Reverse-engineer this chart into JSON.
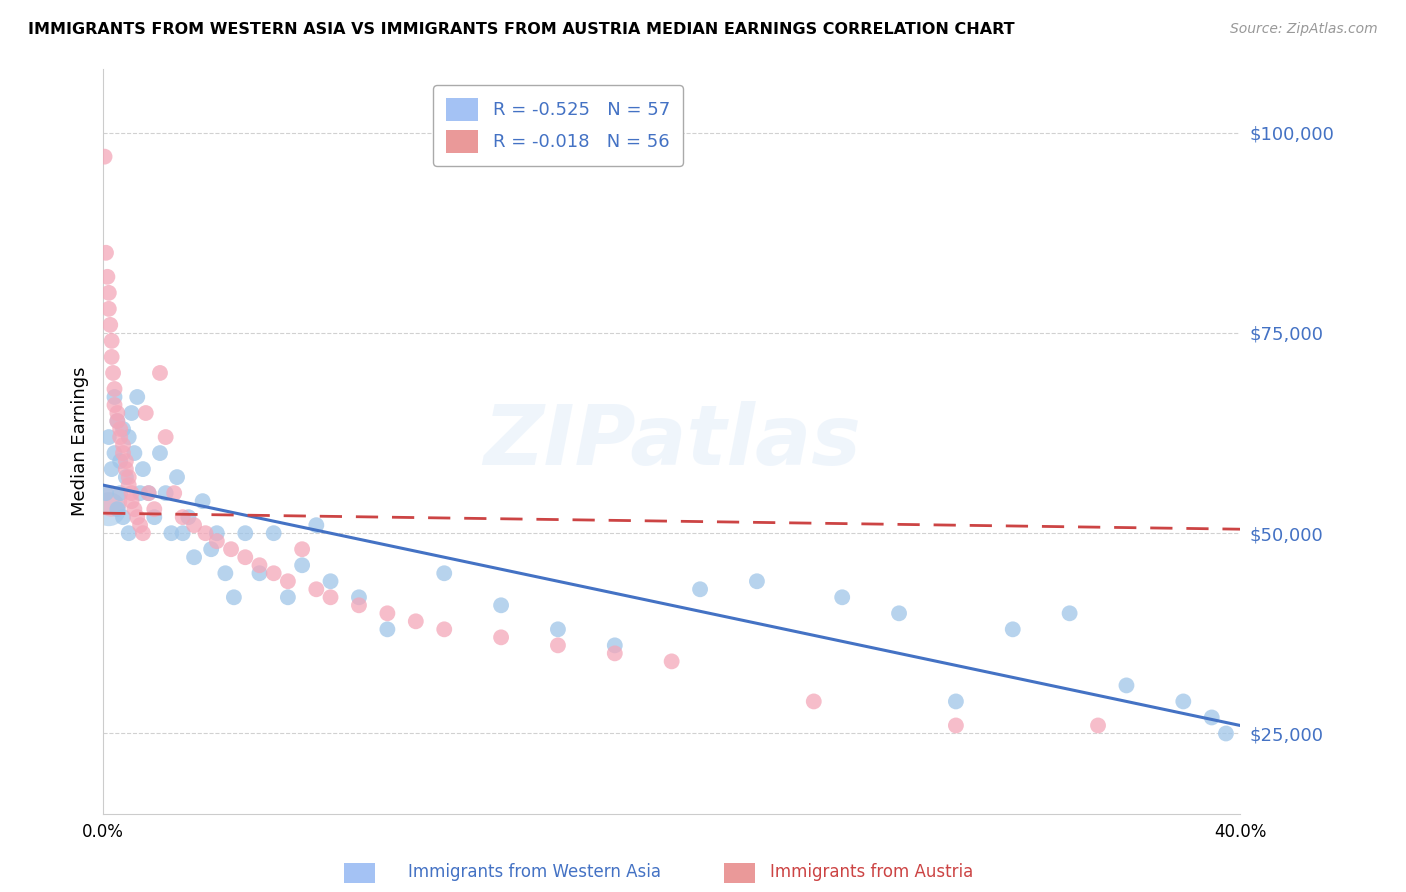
{
  "title": "IMMIGRANTS FROM WESTERN ASIA VS IMMIGRANTS FROM AUSTRIA MEDIAN EARNINGS CORRELATION CHART",
  "source": "Source: ZipAtlas.com",
  "ylabel": "Median Earnings",
  "y_ticks": [
    25000,
    50000,
    75000,
    100000
  ],
  "y_tick_labels": [
    "$25,000",
    "$50,000",
    "$75,000",
    "$100,000"
  ],
  "x_min": 0.0,
  "x_max": 0.4,
  "y_min": 15000,
  "y_max": 108000,
  "legend1_label": "R = -0.525   N = 57",
  "legend2_label": "R = -0.018   N = 56",
  "legend1_color": "#a4c2f4",
  "legend2_color": "#ea9999",
  "watermark": "ZIPatlas",
  "series1_color": "#9fc5e8",
  "series2_color": "#f4a7b9",
  "line1_color": "#4472c4",
  "line2_color": "#cc4444",
  "line1_x0": 0.0,
  "line1_y0": 56000,
  "line1_x1": 0.4,
  "line1_y1": 26000,
  "line2_x0": 0.0,
  "line2_y0": 52500,
  "line2_x1": 0.4,
  "line2_y1": 50500,
  "series1_x": [
    0.001,
    0.002,
    0.003,
    0.004,
    0.004,
    0.005,
    0.005,
    0.006,
    0.006,
    0.007,
    0.007,
    0.008,
    0.009,
    0.009,
    0.01,
    0.011,
    0.012,
    0.013,
    0.014,
    0.016,
    0.018,
    0.02,
    0.022,
    0.024,
    0.026,
    0.028,
    0.03,
    0.032,
    0.035,
    0.038,
    0.04,
    0.043,
    0.046,
    0.05,
    0.055,
    0.06,
    0.065,
    0.07,
    0.075,
    0.08,
    0.09,
    0.1,
    0.12,
    0.14,
    0.16,
    0.18,
    0.21,
    0.23,
    0.26,
    0.28,
    0.3,
    0.32,
    0.34,
    0.36,
    0.38,
    0.39,
    0.395
  ],
  "series1_y": [
    55000,
    62000,
    58000,
    67000,
    60000,
    64000,
    53000,
    59000,
    55000,
    63000,
    52000,
    57000,
    62000,
    50000,
    65000,
    60000,
    67000,
    55000,
    58000,
    55000,
    52000,
    60000,
    55000,
    50000,
    57000,
    50000,
    52000,
    47000,
    54000,
    48000,
    50000,
    45000,
    42000,
    50000,
    45000,
    50000,
    42000,
    46000,
    51000,
    44000,
    42000,
    38000,
    45000,
    41000,
    38000,
    36000,
    43000,
    44000,
    42000,
    40000,
    29000,
    38000,
    40000,
    31000,
    29000,
    27000,
    25000
  ],
  "series2_x": [
    0.0005,
    0.001,
    0.0015,
    0.002,
    0.002,
    0.0025,
    0.003,
    0.003,
    0.0035,
    0.004,
    0.004,
    0.005,
    0.005,
    0.006,
    0.006,
    0.007,
    0.007,
    0.008,
    0.008,
    0.009,
    0.009,
    0.01,
    0.01,
    0.011,
    0.012,
    0.013,
    0.014,
    0.015,
    0.016,
    0.018,
    0.02,
    0.022,
    0.025,
    0.028,
    0.032,
    0.036,
    0.04,
    0.045,
    0.05,
    0.055,
    0.06,
    0.065,
    0.07,
    0.075,
    0.08,
    0.09,
    0.1,
    0.11,
    0.12,
    0.14,
    0.16,
    0.18,
    0.2,
    0.25,
    0.3,
    0.35
  ],
  "series2_y": [
    97000,
    85000,
    82000,
    80000,
    78000,
    76000,
    74000,
    72000,
    70000,
    68000,
    66000,
    65000,
    64000,
    63000,
    62000,
    61000,
    60000,
    59000,
    58000,
    57000,
    56000,
    55000,
    54000,
    53000,
    52000,
    51000,
    50000,
    65000,
    55000,
    53000,
    70000,
    62000,
    55000,
    52000,
    51000,
    50000,
    49000,
    48000,
    47000,
    46000,
    45000,
    44000,
    48000,
    43000,
    42000,
    41000,
    40000,
    39000,
    38000,
    37000,
    36000,
    35000,
    34000,
    29000,
    26000,
    26000
  ]
}
